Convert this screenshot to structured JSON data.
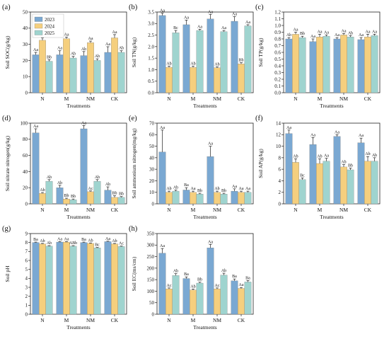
{
  "colors": {
    "y2023": "#7aa8d2",
    "y2024": "#f5cf7e",
    "y2025": "#9fd4cf",
    "bar_edge": "#777777"
  },
  "legend": {
    "placement": "top-left",
    "entries": [
      "2023",
      "2024",
      "2025"
    ]
  },
  "chart_data": [
    {
      "letter": "(a)",
      "type": "bar",
      "ylabel": "Soil SOC(g/kg)",
      "xlabel": "Treatments",
      "ylim": [
        0,
        50
      ],
      "yticks": [
        0,
        10,
        20,
        30,
        40,
        50
      ],
      "categories": [
        "N",
        "M",
        "NM",
        "CK"
      ],
      "show_legend": true,
      "series": [
        {
          "name": "2023",
          "values": [
            23.5,
            23.5,
            23.0,
            25.0
          ],
          "err": [
            1.5,
            2.5,
            2.5,
            3.5
          ],
          "labels": [
            "Aa",
            "Aa",
            "Ab",
            "Aa"
          ]
        },
        {
          "name": "2024",
          "values": [
            32.5,
            33.5,
            31.0,
            34.0
          ],
          "err": [
            1.5,
            1.0,
            1.0,
            2.0
          ],
          "labels": [
            "Aa",
            "Aa",
            "Aa",
            "Aa"
          ]
        },
        {
          "name": "2025",
          "values": [
            19.5,
            21.5,
            20.0,
            25.0
          ],
          "err": [
            1.0,
            1.0,
            1.0,
            1.0
          ],
          "labels": [
            "Bb",
            "Ab",
            "Ab",
            "Ab"
          ]
        }
      ]
    },
    {
      "letter": "(b)",
      "type": "bar",
      "ylabel": "Soil TN(g/kg)",
      "xlabel": "Treatments",
      "ylim": [
        0,
        3.5
      ],
      "yticks": [
        0,
        0.5,
        1.0,
        1.5,
        2.0,
        2.5,
        3.0,
        3.5
      ],
      "categories": [
        "N",
        "M",
        "NM",
        "CK"
      ],
      "show_legend": false,
      "series": [
        {
          "name": "2023",
          "values": [
            3.35,
            2.95,
            3.2,
            3.1
          ],
          "err": [
            0.1,
            0.2,
            0.2,
            0.2
          ],
          "labels": [
            "Aa",
            "Aa",
            "Aa",
            "Aa"
          ]
        },
        {
          "name": "2024",
          "values": [
            1.1,
            1.1,
            1.08,
            1.25
          ],
          "err": [
            0.05,
            0.05,
            0.04,
            0.05
          ],
          "labels": [
            "Ab",
            "Ab",
            "Ab",
            "Bb"
          ]
        },
        {
          "name": "2025",
          "values": [
            2.6,
            2.7,
            2.65,
            2.9
          ],
          "err": [
            0.1,
            0.05,
            0.05,
            0.05
          ],
          "labels": [
            "Bc",
            "Aa",
            "Aa",
            "Aa"
          ]
        }
      ]
    },
    {
      "letter": "(c)",
      "type": "bar",
      "ylabel": "Soil TP(g/kg)",
      "xlabel": "Treatments",
      "ylim": [
        0,
        1.2
      ],
      "yticks": [
        0,
        0.1,
        0.2,
        0.3,
        0.4,
        0.5,
        0.6,
        0.7,
        0.8,
        0.9,
        1.0,
        1.1,
        1.2
      ],
      "categories": [
        "N",
        "M",
        "NM",
        "CK"
      ],
      "show_legend": false,
      "series": [
        {
          "name": "2023",
          "values": [
            0.8,
            0.76,
            0.8,
            0.79
          ],
          "err": [
            0.02,
            0.04,
            0.02,
            0.03
          ],
          "labels": [
            "Ab",
            "Aa",
            "Aa",
            "Aa"
          ]
        },
        {
          "name": "2024",
          "values": [
            0.87,
            0.83,
            0.86,
            0.83
          ],
          "err": [
            0.03,
            0.04,
            0.02,
            0.04
          ],
          "labels": [
            "Aa",
            "Aa",
            "Aa",
            "Aa"
          ]
        },
        {
          "name": "2025",
          "values": [
            0.82,
            0.84,
            0.83,
            0.85
          ],
          "err": [
            0.02,
            0.02,
            0.02,
            0.02
          ],
          "labels": [
            "Bb",
            "Aa",
            "Ab",
            "Aa"
          ]
        }
      ]
    },
    {
      "letter": "(d)",
      "type": "bar",
      "ylabel": "Soil nitrate nitrogen(g/kg)",
      "xlabel": "Treatments",
      "ylim": [
        0,
        100
      ],
      "yticks": [
        0,
        20,
        40,
        60,
        80,
        100
      ],
      "categories": [
        "N",
        "M",
        "NM",
        "CK"
      ],
      "show_legend": false,
      "series": [
        {
          "name": "2023",
          "values": [
            88,
            20,
            93,
            17
          ],
          "err": [
            5,
            3,
            4,
            4
          ],
          "labels": [
            "Aa",
            "Ab",
            "Aa",
            "Ab"
          ]
        },
        {
          "name": "2024",
          "values": [
            13,
            6,
            15,
            8
          ],
          "err": [
            1,
            1,
            1,
            2
          ],
          "labels": [
            "Ab",
            "Bb",
            "Ac",
            "Bb"
          ]
        },
        {
          "name": "2025",
          "values": [
            28,
            5,
            28,
            8
          ],
          "err": [
            2,
            1,
            2,
            1
          ],
          "labels": [
            "Ab",
            "Bb",
            "Ab",
            "Bb"
          ]
        }
      ]
    },
    {
      "letter": "(e)",
      "type": "bar",
      "ylabel": "Soil ammonium nitrogen(mg/kg)",
      "xlabel": "Treatments",
      "ylim": [
        0,
        70
      ],
      "yticks": [
        0,
        10,
        20,
        30,
        40,
        50,
        60,
        70
      ],
      "categories": [
        "N",
        "M",
        "NM",
        "CK"
      ],
      "show_legend": false,
      "series": [
        {
          "name": "2023",
          "values": [
            45,
            12,
            41,
            11
          ],
          "err": [
            19,
            2,
            9,
            2
          ],
          "labels": [
            "Aa",
            "Ba",
            "Aa",
            "Aa"
          ]
        },
        {
          "name": "2024",
          "values": [
            10,
            10,
            10,
            10
          ],
          "err": [
            1,
            1,
            1,
            1
          ],
          "labels": [
            "Ab",
            "Aa",
            "Ab",
            "Aa"
          ]
        },
        {
          "name": "2025",
          "values": [
            11,
            8.5,
            8.5,
            10
          ],
          "err": [
            1,
            0.7,
            0.7,
            1
          ],
          "labels": [
            "Ab",
            "Bb",
            "Bb",
            "Aa"
          ]
        }
      ]
    },
    {
      "letter": "(f)",
      "type": "bar",
      "ylabel": "Soil AP(g/kg)",
      "xlabel": "Treatments",
      "ylim": [
        0,
        14
      ],
      "yticks": [
        0,
        2,
        4,
        6,
        8,
        10,
        12,
        14
      ],
      "categories": [
        "N",
        "M",
        "NM",
        "CK"
      ],
      "show_legend": false,
      "series": [
        {
          "name": "2023",
          "values": [
            12.2,
            10.3,
            11.7,
            10.6
          ],
          "err": [
            0.6,
            1.2,
            0.3,
            0.8
          ],
          "labels": [
            "Aa",
            "Aa",
            "Aa",
            "Aa"
          ]
        },
        {
          "name": "2024",
          "values": [
            7.2,
            7.0,
            6.4,
            7.4
          ],
          "err": [
            0.6,
            0.8,
            0.4,
            0.8
          ],
          "labels": [
            "Ab",
            "Ab",
            "Ab",
            "Ab"
          ]
        },
        {
          "name": "2025",
          "values": [
            4.2,
            7.4,
            5.9,
            7.4
          ],
          "err": [
            0.3,
            0.5,
            0.3,
            0.6
          ],
          "labels": [
            "Bc",
            "Aa",
            "Bb",
            "Ab"
          ]
        }
      ]
    },
    {
      "letter": "(g)",
      "type": "bar",
      "ylabel": "Soil pH",
      "xlabel": "Treatments",
      "ylim": [
        0,
        9
      ],
      "yticks": [
        0,
        1,
        2,
        3,
        4,
        5,
        6,
        7,
        8,
        9
      ],
      "categories": [
        "N",
        "M",
        "NM",
        "CK"
      ],
      "show_legend": false,
      "series": [
        {
          "name": "2023",
          "values": [
            8.0,
            8.05,
            8.0,
            8.1
          ],
          "err": [
            0.05,
            0.05,
            0.05,
            0.05
          ],
          "labels": [
            "Ba",
            "Aa",
            "Ba",
            "Aa"
          ]
        },
        {
          "name": "2024",
          "values": [
            7.85,
            8.05,
            7.9,
            7.85
          ],
          "err": [
            0.05,
            0.05,
            0.05,
            0.05
          ],
          "labels": [
            "Ab",
            "Aa",
            "Ab",
            "Ab"
          ]
        },
        {
          "name": "2025",
          "values": [
            7.6,
            7.6,
            7.4,
            7.55
          ],
          "err": [
            0.05,
            0.05,
            0.05,
            0.05
          ],
          "labels": [
            "Ab",
            "ABb",
            "Bc",
            "Ac"
          ]
        }
      ]
    },
    {
      "letter": "(h)",
      "type": "bar",
      "ylabel": "Soil EC(ms/cm)",
      "xlabel": "Treatments",
      "ylim": [
        0,
        350
      ],
      "yticks": [
        0,
        50,
        100,
        150,
        200,
        250,
        300,
        350
      ],
      "categories": [
        "N",
        "M",
        "NM",
        "CK"
      ],
      "show_legend": false,
      "series": [
        {
          "name": "2023",
          "values": [
            265,
            155,
            288,
            145
          ],
          "err": [
            20,
            7,
            15,
            8
          ],
          "labels": [
            "Aa",
            "Ba",
            "Aa",
            "Ba"
          ]
        },
        {
          "name": "2024",
          "values": [
            110,
            105,
            110,
            112
          ],
          "err": [
            4,
            4,
            4,
            4
          ],
          "labels": [
            "Ac",
            "Ab",
            "Ac",
            "Aa"
          ]
        },
        {
          "name": "2025",
          "values": [
            168,
            135,
            170,
            140
          ],
          "err": [
            8,
            4,
            8,
            6
          ],
          "labels": [
            "Ab",
            "Bb",
            "Ab",
            "Ba"
          ]
        }
      ]
    }
  ]
}
